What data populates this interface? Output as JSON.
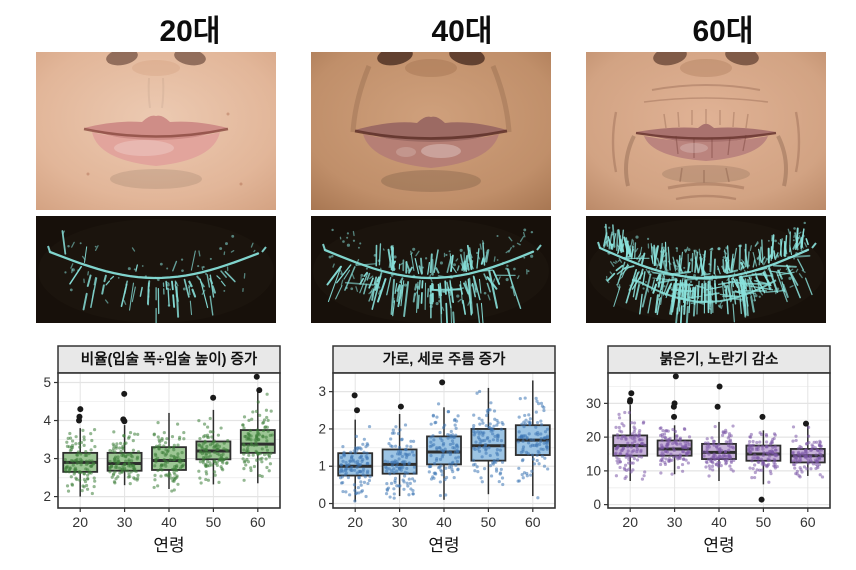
{
  "page": {
    "background": "#ffffff"
  },
  "columns": [
    {
      "header": "20대"
    },
    {
      "header": "40대"
    },
    {
      "header": "60대"
    }
  ],
  "photos": [
    {
      "label": "lips-photo-20s",
      "colors": {
        "skinLight": "#eccab2",
        "skin": "#e2b699",
        "skinEdge": "#cf9c7b",
        "lipU": "#cf8d87",
        "lipL": "#e2a49c",
        "mouthLine": "#8a4a40",
        "nostril": "#40211a"
      }
    },
    {
      "label": "lips-photo-40s",
      "colors": {
        "skinLight": "#cfa07c",
        "skin": "#c08f6a",
        "skinEdge": "#9c6b47",
        "lipU": "#9c6a63",
        "lipL": "#b67f75",
        "mouthLine": "#5e3028",
        "nostril": "#2e150f"
      }
    },
    {
      "label": "lips-photo-60s",
      "colors": {
        "skinLight": "#e0b295",
        "skin": "#d2a383",
        "skinEdge": "#b07e5c",
        "lipU": "#a9726e",
        "lipL": "#bb847e",
        "mouthLine": "#6e3a33",
        "nostril": "#3a1d14"
      }
    }
  ],
  "wrinkle_maps": [
    {
      "label": "wrinkle-map-20s",
      "background": "#17100a",
      "line_color": "#86ded8",
      "below_lines": 34,
      "above_lines": 5,
      "speckles": 55,
      "horizontal_lines": 0,
      "curve_amp": 26,
      "len_factor": 1.0,
      "bottom_curve": false,
      "seed": 11
    },
    {
      "label": "wrinkle-map-40s",
      "background": "#17100a",
      "line_color": "#86ded8",
      "below_lines": 62,
      "above_lines": 44,
      "speckles": 110,
      "horizontal_lines": 8,
      "curve_amp": 28,
      "len_factor": 1.25,
      "bottom_curve": false,
      "seed": 23
    },
    {
      "label": "wrinkle-map-60s",
      "background": "#17100a",
      "line_color": "#8ae2dc",
      "below_lines": 95,
      "above_lines": 120,
      "speckles": 200,
      "horizontal_lines": 42,
      "curve_amp": 30,
      "len_factor": 1.1,
      "bottom_curve": true,
      "seed": 37
    }
  ],
  "chart_data": [
    {
      "type": "boxplot",
      "title": "비율(입술 폭÷입술 높이) 증가",
      "xlabel": "연령",
      "categories": [
        "20",
        "30",
        "40",
        "50",
        "60"
      ],
      "yticks": [
        2,
        3,
        4,
        5
      ],
      "ylim": [
        1.7,
        5.25
      ],
      "box_fill": "#9cc694",
      "point_color": "#3c7d38",
      "boxes": [
        {
          "lo": 2.0,
          "q1": 2.65,
          "med": 2.9,
          "q3": 3.15,
          "hi": 3.8,
          "out": [
            4.0,
            4.1,
            4.3
          ]
        },
        {
          "lo": 2.3,
          "q1": 2.68,
          "med": 2.87,
          "q3": 3.15,
          "hi": 3.88,
          "out": [
            3.98,
            4.03,
            4.7
          ]
        },
        {
          "lo": 2.2,
          "q1": 2.7,
          "med": 2.95,
          "q3": 3.3,
          "hi": 4.2,
          "out": []
        },
        {
          "lo": 2.32,
          "q1": 2.98,
          "med": 3.2,
          "q3": 3.45,
          "hi": 4.28,
          "out": [
            4.6
          ]
        },
        {
          "lo": 2.35,
          "q1": 3.15,
          "med": 3.38,
          "q3": 3.75,
          "hi": 4.75,
          "out": [
            4.8,
            5.15
          ]
        }
      ]
    },
    {
      "type": "boxplot",
      "title": "가로, 세로 주름 증가",
      "xlabel": "연령",
      "categories": [
        "20",
        "30",
        "40",
        "50",
        "60"
      ],
      "yticks": [
        0,
        1,
        2,
        3
      ],
      "ylim": [
        -0.12,
        3.5
      ],
      "box_fill": "#9cc4e4",
      "point_color": "#3e76b4",
      "boxes": [
        {
          "lo": 0.05,
          "q1": 0.75,
          "med": 1.0,
          "q3": 1.35,
          "hi": 2.25,
          "out": [
            2.5,
            2.9
          ]
        },
        {
          "lo": 0.2,
          "q1": 0.8,
          "med": 1.05,
          "q3": 1.45,
          "hi": 2.4,
          "out": [
            2.6
          ]
        },
        {
          "lo": 0.1,
          "q1": 1.05,
          "med": 1.38,
          "q3": 1.8,
          "hi": 2.58,
          "out": [
            3.25
          ]
        },
        {
          "lo": 0.25,
          "q1": 1.15,
          "med": 1.55,
          "q3": 2.0,
          "hi": 3.1,
          "out": []
        },
        {
          "lo": 0.2,
          "q1": 1.3,
          "med": 1.7,
          "q3": 2.1,
          "hi": 3.3,
          "out": []
        }
      ]
    },
    {
      "type": "boxplot",
      "title": "붉은기, 노란기 감소",
      "xlabel": "연령",
      "categories": [
        "20",
        "30",
        "40",
        "50",
        "60"
      ],
      "yticks": [
        0,
        10,
        20,
        30
      ],
      "ylim": [
        -1,
        39
      ],
      "box_fill": "#c7b2d9",
      "point_color": "#7b58a8",
      "boxes": [
        {
          "lo": 7,
          "q1": 14.5,
          "med": 17.5,
          "q3": 20.5,
          "hi": 29.5,
          "out": [
            30.5,
            31,
            33
          ]
        },
        {
          "lo": 9,
          "q1": 14.5,
          "med": 16.5,
          "q3": 19,
          "hi": 23.5,
          "out": [
            26,
            29,
            30,
            38
          ]
        },
        {
          "lo": 7,
          "q1": 13.5,
          "med": 15.5,
          "q3": 18,
          "hi": 24.5,
          "out": [
            29,
            35
          ]
        },
        {
          "lo": 6,
          "q1": 13,
          "med": 15,
          "q3": 17.5,
          "hi": 22,
          "out": [
            1.5,
            26
          ]
        },
        {
          "lo": 8.5,
          "q1": 12.5,
          "med": 14.5,
          "q3": 16.5,
          "hi": 23.5,
          "out": [
            24
          ]
        }
      ]
    }
  ],
  "style": {
    "panel_border": "#333333",
    "grid_major": "#e4e4e4",
    "grid_minor": "#f2f2f2",
    "strip_bg": "#e8e8e8",
    "box_stroke": "#2e2e2e",
    "tick_text": "#333333"
  }
}
